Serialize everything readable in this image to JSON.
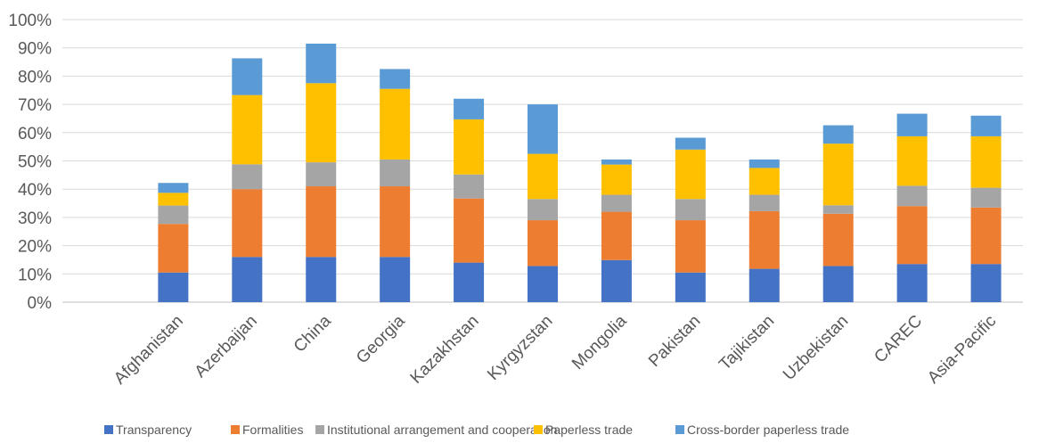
{
  "chart_data": {
    "type": "bar",
    "stacked": true,
    "categories": [
      "Afghanistan",
      "Azerbaijan",
      "China",
      "Georgia",
      "Kazakhstan",
      "Kyrgyzstan",
      "Mongolia",
      "Pakistan",
      "Tajikistan",
      "Uzbekistan",
      "CAREC",
      "Asia-Pacific"
    ],
    "series": [
      {
        "name": "Transparency",
        "color": "#4472C4",
        "values": [
          10.5,
          16,
          16,
          16,
          14,
          12.8,
          14.9,
          10.5,
          11.8,
          12.8,
          13.5,
          13.5
        ]
      },
      {
        "name": "Formalities",
        "color": "#ED7D31",
        "values": [
          17.2,
          24,
          25,
          25,
          22.7,
          16.2,
          17.1,
          18.5,
          20.4,
          18.5,
          20.5,
          20
        ]
      },
      {
        "name": "Institutional arrangement and cooperation",
        "color": "#A5A5A5",
        "values": [
          6.5,
          8.8,
          8.5,
          9.5,
          8.5,
          7.5,
          6,
          7.5,
          5.8,
          3,
          7.2,
          7
        ]
      },
      {
        "name": "Paperless trade",
        "color": "#FFC000",
        "values": [
          4.5,
          24.5,
          28,
          25,
          19.5,
          16,
          10.7,
          17.5,
          9.5,
          21.8,
          17.5,
          18.2
        ]
      },
      {
        "name": "Cross-border paperless trade",
        "color": "#5B9BD5",
        "values": [
          3.5,
          13,
          14,
          7,
          7.3,
          17.5,
          1.8,
          4.2,
          3,
          6.5,
          8,
          7.3
        ]
      }
    ],
    "ylim": [
      0,
      100
    ],
    "yticks": [
      "0%",
      "10%",
      "20%",
      "30%",
      "40%",
      "50%",
      "60%",
      "70%",
      "80%",
      "90%",
      "100%"
    ],
    "grid": true,
    "legend": "bottom"
  }
}
